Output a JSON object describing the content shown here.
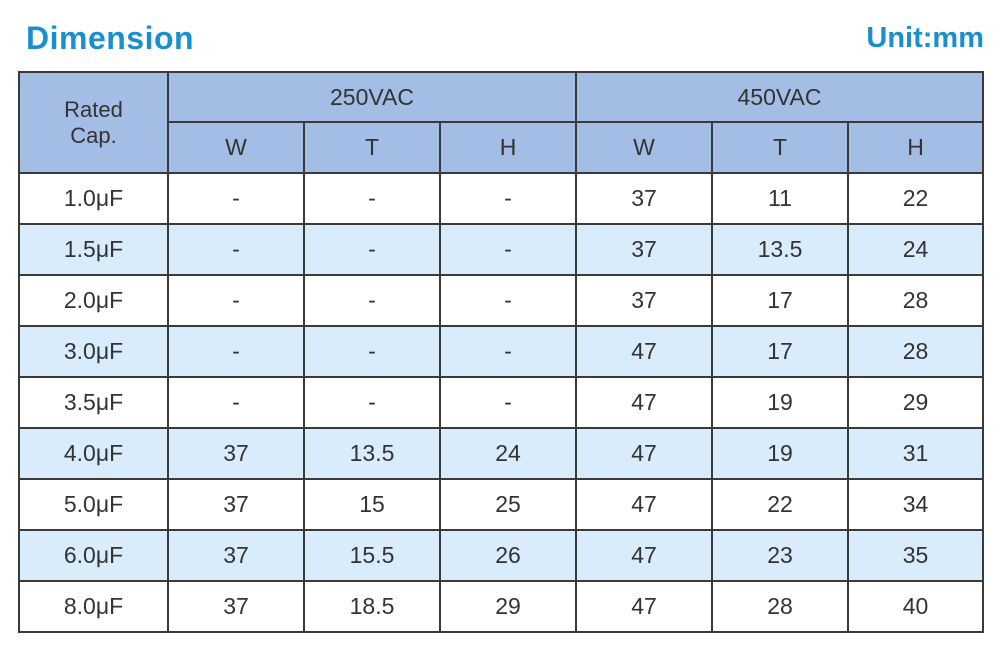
{
  "title": "Dimension",
  "unit": "Unit:mm",
  "table": {
    "rated_label_1": "Rated",
    "rated_label_2": "Cap.",
    "groups": [
      "250VAC",
      "450VAC"
    ],
    "columns": [
      "W",
      "T",
      "H",
      "W",
      "T",
      "H"
    ],
    "rows": [
      [
        "1.0μF",
        "-",
        "-",
        "-",
        "37",
        "11",
        "22"
      ],
      [
        "1.5μF",
        "-",
        "-",
        "-",
        "37",
        "13.5",
        "24"
      ],
      [
        "2.0μF",
        "-",
        "-",
        "-",
        "37",
        "17",
        "28"
      ],
      [
        "3.0μF",
        "-",
        "-",
        "-",
        "47",
        "17",
        "28"
      ],
      [
        "3.5μF",
        "-",
        "-",
        "-",
        "47",
        "19",
        "29"
      ],
      [
        "4.0μF",
        "37",
        "13.5",
        "24",
        "47",
        "19",
        "31"
      ],
      [
        "5.0μF",
        "37",
        "15",
        "25",
        "47",
        "22",
        "34"
      ],
      [
        "6.0μF",
        "37",
        "15.5",
        "26",
        "47",
        "23",
        "35"
      ],
      [
        "8.0μF",
        "37",
        "18.5",
        "29",
        "47",
        "28",
        "40"
      ]
    ]
  },
  "colors": {
    "title": "#1a8fd0",
    "header_bg": "#a4bde4",
    "alt_row_bg": "#d9ecfb",
    "border": "#3a3a3a"
  }
}
